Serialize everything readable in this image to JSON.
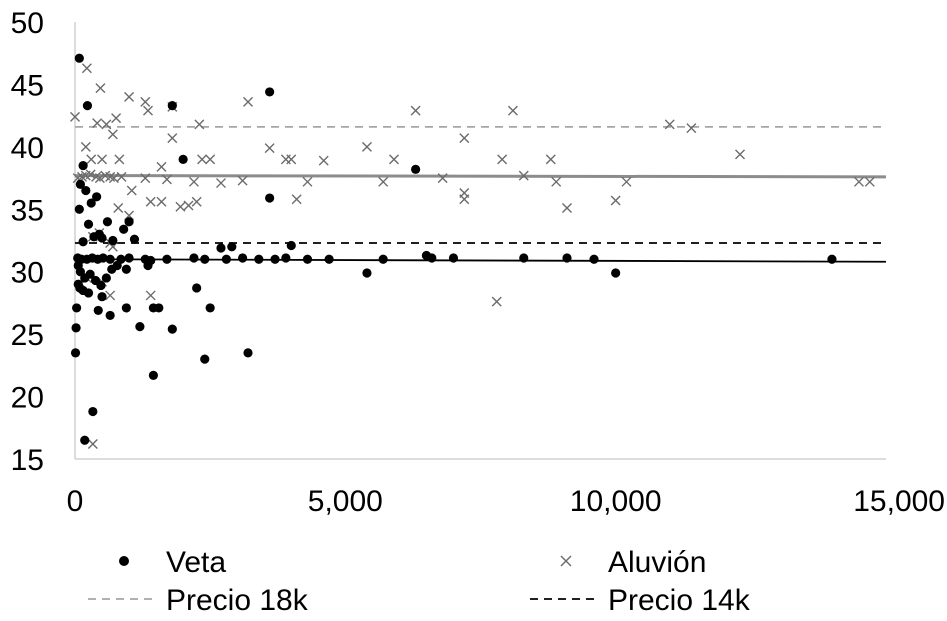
{
  "chart_data": {
    "type": "scatter",
    "title": "",
    "xlabel": "",
    "ylabel": "",
    "xlim": [
      0,
      15000
    ],
    "ylim": [
      15,
      50
    ],
    "xticks": [
      0,
      5000,
      10000,
      15000
    ],
    "xtick_labels": [
      "0",
      "5,000",
      "10,000",
      "15,000"
    ],
    "yticks": [
      15,
      20,
      25,
      30,
      35,
      40,
      45,
      50
    ],
    "ytick_labels": [
      "15",
      "20",
      "25",
      "30",
      "35",
      "40",
      "45",
      "50"
    ],
    "grid": false,
    "legend_position": "bottom",
    "series": [
      {
        "name": "Veta",
        "marker": "dot",
        "color": "#000000",
        "points": [
          [
            80,
            47.1
          ],
          [
            230,
            43.3
          ],
          [
            1800,
            43.3
          ],
          [
            3600,
            44.4
          ],
          [
            3600,
            35.9
          ],
          [
            2000,
            39.0
          ],
          [
            6300,
            38.2
          ],
          [
            150,
            38.5
          ],
          [
            100,
            37.0
          ],
          [
            200,
            36.5
          ],
          [
            400,
            36.0
          ],
          [
            300,
            35.5
          ],
          [
            80,
            35.0
          ],
          [
            600,
            34.0
          ],
          [
            250,
            33.8
          ],
          [
            450,
            33.0
          ],
          [
            350,
            32.8
          ],
          [
            500,
            32.7
          ],
          [
            700,
            32.5
          ],
          [
            150,
            32.4
          ],
          [
            900,
            33.4
          ],
          [
            1100,
            32.6
          ],
          [
            1000,
            34.0
          ],
          [
            50,
            31.1
          ],
          [
            120,
            31.0
          ],
          [
            220,
            31.0
          ],
          [
            320,
            31.1
          ],
          [
            420,
            31.0
          ],
          [
            520,
            31.1
          ],
          [
            650,
            31.0
          ],
          [
            850,
            31.0
          ],
          [
            1000,
            31.1
          ],
          [
            1300,
            31.0
          ],
          [
            1400,
            30.9
          ],
          [
            1700,
            31.0
          ],
          [
            2200,
            31.1
          ],
          [
            2400,
            31.0
          ],
          [
            2800,
            31.0
          ],
          [
            3100,
            31.1
          ],
          [
            3400,
            31.0
          ],
          [
            3700,
            31.0
          ],
          [
            3900,
            31.1
          ],
          [
            4300,
            31.0
          ],
          [
            4700,
            31.0
          ],
          [
            5700,
            31.0
          ],
          [
            6500,
            31.3
          ],
          [
            7000,
            31.1
          ],
          [
            8300,
            31.1
          ],
          [
            9100,
            31.1
          ],
          [
            9600,
            31.0
          ],
          [
            14000,
            31.0
          ],
          [
            2700,
            31.9
          ],
          [
            2900,
            32.0
          ],
          [
            4000,
            32.1
          ],
          [
            6600,
            31.1
          ],
          [
            60,
            30.5
          ],
          [
            100,
            30.0
          ],
          [
            180,
            29.5
          ],
          [
            280,
            29.8
          ],
          [
            380,
            29.3
          ],
          [
            480,
            28.9
          ],
          [
            580,
            29.5
          ],
          [
            680,
            30.2
          ],
          [
            780,
            30.5
          ],
          [
            950,
            30.2
          ],
          [
            1350,
            30.5
          ],
          [
            60,
            29.0
          ],
          [
            90,
            28.7
          ],
          [
            150,
            28.5
          ],
          [
            250,
            28.3
          ],
          [
            500,
            28.0
          ],
          [
            5400,
            29.9
          ],
          [
            10000,
            29.9
          ],
          [
            2250,
            28.7
          ],
          [
            30,
            27.1
          ],
          [
            430,
            26.9
          ],
          [
            650,
            26.5
          ],
          [
            950,
            27.1
          ],
          [
            1450,
            27.1
          ],
          [
            1550,
            27.1
          ],
          [
            2500,
            27.1
          ],
          [
            20,
            25.5
          ],
          [
            1200,
            25.6
          ],
          [
            1800,
            25.4
          ],
          [
            10,
            23.5
          ],
          [
            2400,
            23.0
          ],
          [
            3200,
            23.5
          ],
          [
            1450,
            21.7
          ],
          [
            330,
            18.8
          ],
          [
            180,
            16.5
          ]
        ]
      },
      {
        "name": "Aluvión",
        "marker": "x",
        "color": "#6b6b6b",
        "points": [
          [
            220,
            46.3
          ],
          [
            0,
            42.4
          ],
          [
            470,
            44.7
          ],
          [
            410,
            41.9
          ],
          [
            1000,
            44.0
          ],
          [
            1300,
            43.6
          ],
          [
            1350,
            42.9
          ],
          [
            1800,
            43.2
          ],
          [
            3200,
            43.6
          ],
          [
            6300,
            42.9
          ],
          [
            8100,
            42.9
          ],
          [
            11000,
            41.8
          ],
          [
            11400,
            41.5
          ],
          [
            200,
            40.0
          ],
          [
            580,
            41.8
          ],
          [
            700,
            41.0
          ],
          [
            760,
            42.3
          ],
          [
            1800,
            40.7
          ],
          [
            2300,
            41.8
          ],
          [
            3600,
            39.9
          ],
          [
            5400,
            40.0
          ],
          [
            7200,
            40.7
          ],
          [
            3900,
            39.0
          ],
          [
            4000,
            39.0
          ],
          [
            4600,
            38.9
          ],
          [
            5900,
            39.0
          ],
          [
            7900,
            39.0
          ],
          [
            8800,
            39.0
          ],
          [
            12300,
            39.4
          ],
          [
            300,
            39.0
          ],
          [
            500,
            39.0
          ],
          [
            820,
            39.0
          ],
          [
            1600,
            38.4
          ],
          [
            2350,
            39.0
          ],
          [
            2500,
            39.0
          ],
          [
            50,
            37.5
          ],
          [
            130,
            37.6
          ],
          [
            200,
            37.7
          ],
          [
            290,
            37.8
          ],
          [
            390,
            37.6
          ],
          [
            460,
            37.5
          ],
          [
            560,
            37.7
          ],
          [
            650,
            37.6
          ],
          [
            720,
            37.5
          ],
          [
            860,
            37.6
          ],
          [
            1050,
            36.5
          ],
          [
            1300,
            37.5
          ],
          [
            1700,
            37.4
          ],
          [
            2200,
            37.2
          ],
          [
            2700,
            37.1
          ],
          [
            3100,
            37.3
          ],
          [
            4300,
            37.2
          ],
          [
            5700,
            37.2
          ],
          [
            6800,
            37.5
          ],
          [
            7200,
            36.3
          ],
          [
            8300,
            37.7
          ],
          [
            8900,
            37.2
          ],
          [
            10200,
            37.2
          ],
          [
            14500,
            37.2
          ],
          [
            14700,
            37.2
          ],
          [
            4100,
            35.8
          ],
          [
            7200,
            35.8
          ],
          [
            9100,
            35.1
          ],
          [
            10000,
            35.7
          ],
          [
            1400,
            35.6
          ],
          [
            1600,
            35.6
          ],
          [
            1950,
            35.2
          ],
          [
            2100,
            35.3
          ],
          [
            2250,
            35.6
          ],
          [
            800,
            35.1
          ],
          [
            1000,
            34.5
          ],
          [
            450,
            33.1
          ],
          [
            330,
            32.8
          ],
          [
            650,
            32.3
          ],
          [
            700,
            32.0
          ],
          [
            220,
            29.5
          ],
          [
            500,
            29.2
          ],
          [
            650,
            28.1
          ],
          [
            1400,
            28.1
          ],
          [
            7800,
            27.6
          ],
          [
            330,
            16.2
          ]
        ]
      },
      {
        "name": "Precio 18k",
        "type": "hline",
        "style": "dashed",
        "color": "#a6a6a6",
        "y": 41.6
      },
      {
        "name": "Precio 14k",
        "type": "hline",
        "style": "dashed",
        "color": "#000000",
        "y": 32.3
      },
      {
        "name": "",
        "type": "trendline",
        "color": "#8c8c8c",
        "x": [
          0,
          15000
        ],
        "y": [
          37.7,
          37.6
        ]
      },
      {
        "name": "",
        "type": "trendline",
        "color": "#000000",
        "x": [
          0,
          15000
        ],
        "y": [
          31.0,
          30.8
        ]
      }
    ],
    "legend": [
      {
        "label": "Veta",
        "marker": "dot"
      },
      {
        "label": "Aluvión",
        "marker": "x"
      },
      {
        "label": "Precio 18k",
        "marker": "dash-light"
      },
      {
        "label": "Precio 14k",
        "marker": "dash-dark"
      }
    ]
  }
}
